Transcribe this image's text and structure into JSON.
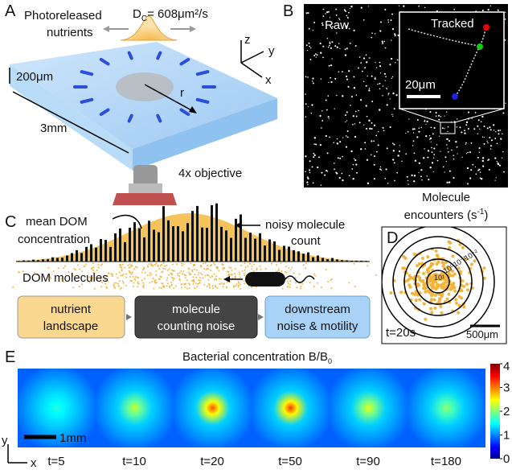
{
  "panel_a": {
    "label": "A",
    "nutrients_line1": "Photoreleased",
    "nutrients_line2": "nutrients",
    "diffusion": {
      "symbol": "D",
      "subscript": "C",
      "value": "= 608μm²/s"
    },
    "thickness": "200μm",
    "width": "3mm",
    "radius": "r",
    "axes": {
      "z": "z",
      "y": "y",
      "x": "x"
    },
    "objective": "4x objective"
  },
  "panel_b": {
    "label": "B",
    "raw": "Raw",
    "tracked": "Tracked",
    "scale": "20μm"
  },
  "panel_c": {
    "label": "C",
    "mean_line1": "mean DOM",
    "mean_line2": "concentration",
    "noisy_line1": "noisy molecule",
    "noisy_line2": "count",
    "molecules": "DOM molecules",
    "boxes": [
      {
        "line1": "nutrient",
        "line2": "landscape"
      },
      {
        "line1": "molecule",
        "line2": "counting noise"
      },
      {
        "line1": "downstream",
        "line2": "noise & motility"
      }
    ]
  },
  "panel_d": {
    "label": "D",
    "title_line1": "Molecule",
    "title_line2": {
      "text": "encounters (s",
      "superscript": "-1",
      "close": ")"
    },
    "rings": [
      "10¹",
      "10⁰",
      "10⁻¹",
      "10⁻²"
    ],
    "time": "t=20s",
    "scale": "500μm"
  },
  "panel_e": {
    "label": "E",
    "title": {
      "text": "Bacterial concentration B/B",
      "subscript": "0"
    },
    "scale": "1mm",
    "axes": {
      "y": "y",
      "x": "x"
    },
    "times": [
      "t=5",
      "t=10",
      "t=20",
      "t=50",
      "t=90",
      "t=180"
    ],
    "colorbar_ticks": [
      0,
      1,
      2,
      3,
      4
    ]
  }
}
